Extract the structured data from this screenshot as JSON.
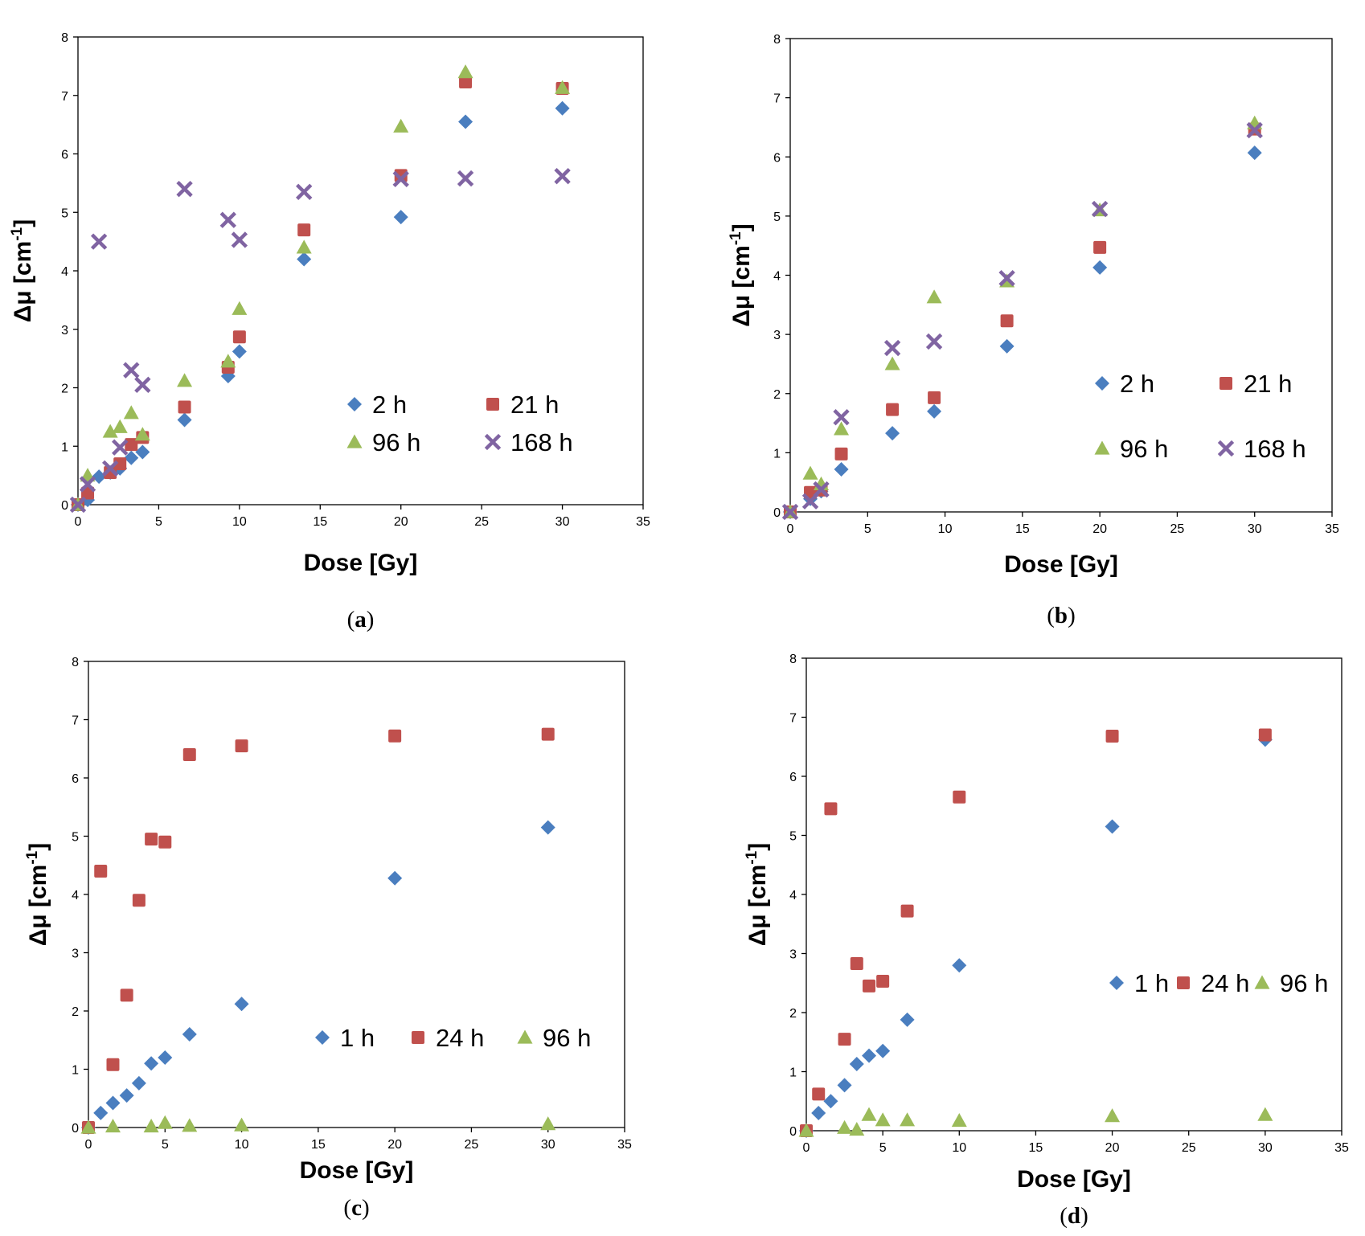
{
  "chart_data": [
    {
      "id": "a",
      "type": "scatter",
      "caption": "(a)",
      "xlabel": "Dose [Gy]",
      "ylabel": "Δμ [cm-1]",
      "ylabel_parts": {
        "main": "Δμ [cm",
        "sup": "-1",
        "end": "]"
      },
      "xlim": [
        0,
        35
      ],
      "ylim": [
        0,
        8
      ],
      "xticks": [
        0,
        5,
        10,
        15,
        20,
        25,
        30,
        35
      ],
      "yticks": [
        0,
        1,
        2,
        3,
        4,
        5,
        6,
        7,
        8
      ],
      "grid": false,
      "legend_placement": "lower-right",
      "legend_columns": 2,
      "series": [
        {
          "name": "2 h",
          "marker": "diamond",
          "color": "#4a7ebf",
          "x": [
            0,
            0.6,
            1.3,
            2,
            2.6,
            3.3,
            4,
            6.6,
            9.3,
            10,
            14,
            20,
            24,
            30
          ],
          "y": [
            0,
            0.08,
            0.48,
            0.55,
            0.62,
            0.8,
            0.9,
            1.45,
            2.2,
            2.62,
            4.2,
            4.92,
            6.55,
            6.78
          ]
        },
        {
          "name": "21 h",
          "marker": "square",
          "color": "#c0504d",
          "x": [
            0,
            0.6,
            2,
            2.6,
            3.3,
            4,
            6.6,
            9.3,
            10,
            14,
            20,
            24,
            30
          ],
          "y": [
            0,
            0.2,
            0.55,
            0.7,
            1.03,
            1.15,
            1.67,
            2.35,
            2.87,
            4.7,
            5.63,
            7.23,
            7.12
          ]
        },
        {
          "name": "96 h",
          "marker": "triangle",
          "color": "#9bbb59",
          "x": [
            0,
            0.6,
            2,
            2.6,
            3.3,
            4,
            6.6,
            9.3,
            10,
            14,
            20,
            24,
            30
          ],
          "y": [
            0,
            0.5,
            1.25,
            1.33,
            1.57,
            1.2,
            2.12,
            2.45,
            3.35,
            4.4,
            6.47,
            7.4,
            7.13
          ]
        },
        {
          "name": "168 h",
          "marker": "x",
          "color": "#8064a2",
          "x": [
            0,
            0.6,
            1.3,
            2,
            2.6,
            3.3,
            4,
            6.6,
            9.3,
            10,
            14,
            20,
            24,
            30
          ],
          "y": [
            0,
            0.35,
            4.5,
            0.62,
            0.98,
            2.3,
            2.05,
            5.4,
            4.87,
            4.53,
            5.35,
            5.57,
            5.58,
            5.62
          ]
        }
      ]
    },
    {
      "id": "b",
      "type": "scatter",
      "caption": "(b)",
      "xlabel": "Dose [Gy]",
      "ylabel": "Δμ [cm-1]",
      "ylabel_parts": {
        "main": "Δμ [cm",
        "sup": "-1",
        "end": "]"
      },
      "xlim": [
        0,
        35
      ],
      "ylim": [
        0,
        8
      ],
      "xticks": [
        0,
        5,
        10,
        15,
        20,
        25,
        30,
        35
      ],
      "yticks": [
        0,
        1,
        2,
        3,
        4,
        5,
        6,
        7,
        8
      ],
      "grid": false,
      "legend_placement": "lower-right",
      "legend_columns": 2,
      "series": [
        {
          "name": "2 h",
          "marker": "diamond",
          "color": "#4a7ebf",
          "x": [
            0,
            1.3,
            2,
            3.3,
            6.6,
            9.3,
            14,
            20,
            30
          ],
          "y": [
            0,
            0.22,
            0.35,
            0.72,
            1.33,
            1.7,
            2.8,
            4.13,
            6.07
          ]
        },
        {
          "name": "21 h",
          "marker": "square",
          "color": "#c0504d",
          "x": [
            0,
            1.3,
            2,
            3.3,
            6.6,
            9.3,
            14,
            20,
            30
          ],
          "y": [
            0,
            0.33,
            0.37,
            0.98,
            1.73,
            1.93,
            3.23,
            4.47,
            6.47
          ]
        },
        {
          "name": "96 h",
          "marker": "triangle",
          "color": "#9bbb59",
          "x": [
            0,
            1.3,
            2,
            3.3,
            6.6,
            9.3,
            14,
            20,
            30
          ],
          "y": [
            0,
            0.65,
            0.47,
            1.4,
            2.5,
            3.63,
            3.9,
            5.1,
            6.57
          ]
        },
        {
          "name": "168 h",
          "marker": "x",
          "color": "#8064a2",
          "x": [
            0,
            1.3,
            2,
            3.3,
            6.6,
            9.3,
            14,
            20,
            30
          ],
          "y": [
            0,
            0.18,
            0.38,
            1.6,
            2.77,
            2.88,
            3.95,
            5.12,
            6.45
          ]
        }
      ]
    },
    {
      "id": "c",
      "type": "scatter",
      "caption": "(c)",
      "xlabel": "Dose [Gy]",
      "ylabel": "Δμ [cm-1]",
      "ylabel_parts": {
        "main": "Δμ [cm",
        "sup": "-1",
        "end": "]"
      },
      "xlim": [
        0,
        35
      ],
      "ylim": [
        0,
        8
      ],
      "xticks": [
        0,
        5,
        10,
        15,
        20,
        25,
        30,
        35
      ],
      "yticks": [
        0,
        1,
        2,
        3,
        4,
        5,
        6,
        7,
        8
      ],
      "grid": false,
      "legend_placement": "lower-right",
      "legend_columns": 3,
      "series": [
        {
          "name": "1 h",
          "marker": "diamond",
          "color": "#4a7ebf",
          "x": [
            0,
            0.8,
            1.6,
            2.5,
            3.3,
            4.1,
            5,
            6.6,
            10,
            20,
            30
          ],
          "y": [
            0,
            0.25,
            0.42,
            0.55,
            0.76,
            1.1,
            1.2,
            1.6,
            2.12,
            4.28,
            5.15
          ]
        },
        {
          "name": "24 h",
          "marker": "square",
          "color": "#c0504d",
          "x": [
            0,
            0.8,
            1.6,
            2.5,
            3.3,
            4.1,
            5,
            6.6,
            10,
            20,
            30
          ],
          "y": [
            0,
            4.4,
            1.08,
            2.27,
            3.9,
            4.95,
            4.9,
            6.4,
            6.55,
            6.72,
            6.75
          ]
        },
        {
          "name": "96 h",
          "marker": "triangle",
          "color": "#9bbb59",
          "x": [
            0,
            1.6,
            4.1,
            5,
            6.6,
            10,
            30
          ],
          "y": [
            0,
            0.02,
            0.02,
            0.08,
            0.03,
            0.04,
            0.06
          ]
        }
      ]
    },
    {
      "id": "d",
      "type": "scatter",
      "caption": "(d)",
      "xlabel": "Dose [Gy]",
      "ylabel": "Δμ [cm-1]",
      "ylabel_parts": {
        "main": "Δμ [cm",
        "sup": "-1",
        "end": "]"
      },
      "xlim": [
        0,
        35
      ],
      "ylim": [
        0,
        8
      ],
      "xticks": [
        0,
        5,
        10,
        15,
        20,
        25,
        30,
        35
      ],
      "yticks": [
        0,
        1,
        2,
        3,
        4,
        5,
        6,
        7,
        8
      ],
      "grid": false,
      "legend_placement": "right",
      "legend_columns": 3,
      "series": [
        {
          "name": "1 h",
          "marker": "diamond",
          "color": "#4a7ebf",
          "x": [
            0,
            0.8,
            1.6,
            2.5,
            3.3,
            4.1,
            5,
            6.6,
            10,
            20,
            30
          ],
          "y": [
            0,
            0.3,
            0.5,
            0.77,
            1.13,
            1.27,
            1.35,
            1.88,
            2.8,
            5.15,
            6.62
          ]
        },
        {
          "name": "24 h",
          "marker": "square",
          "color": "#c0504d",
          "x": [
            0,
            0.8,
            1.6,
            2.5,
            3.3,
            4.1,
            5,
            6.6,
            10,
            20,
            30
          ],
          "y": [
            0,
            0.62,
            5.45,
            1.55,
            2.83,
            2.45,
            2.53,
            3.72,
            5.65,
            6.68,
            6.7
          ]
        },
        {
          "name": "96 h",
          "marker": "triangle",
          "color": "#9bbb59",
          "x": [
            0,
            2.5,
            3.3,
            4.1,
            5,
            6.6,
            10,
            20,
            30
          ],
          "y": [
            0,
            0.05,
            0.02,
            0.27,
            0.18,
            0.18,
            0.17,
            0.25,
            0.27
          ]
        }
      ]
    }
  ]
}
